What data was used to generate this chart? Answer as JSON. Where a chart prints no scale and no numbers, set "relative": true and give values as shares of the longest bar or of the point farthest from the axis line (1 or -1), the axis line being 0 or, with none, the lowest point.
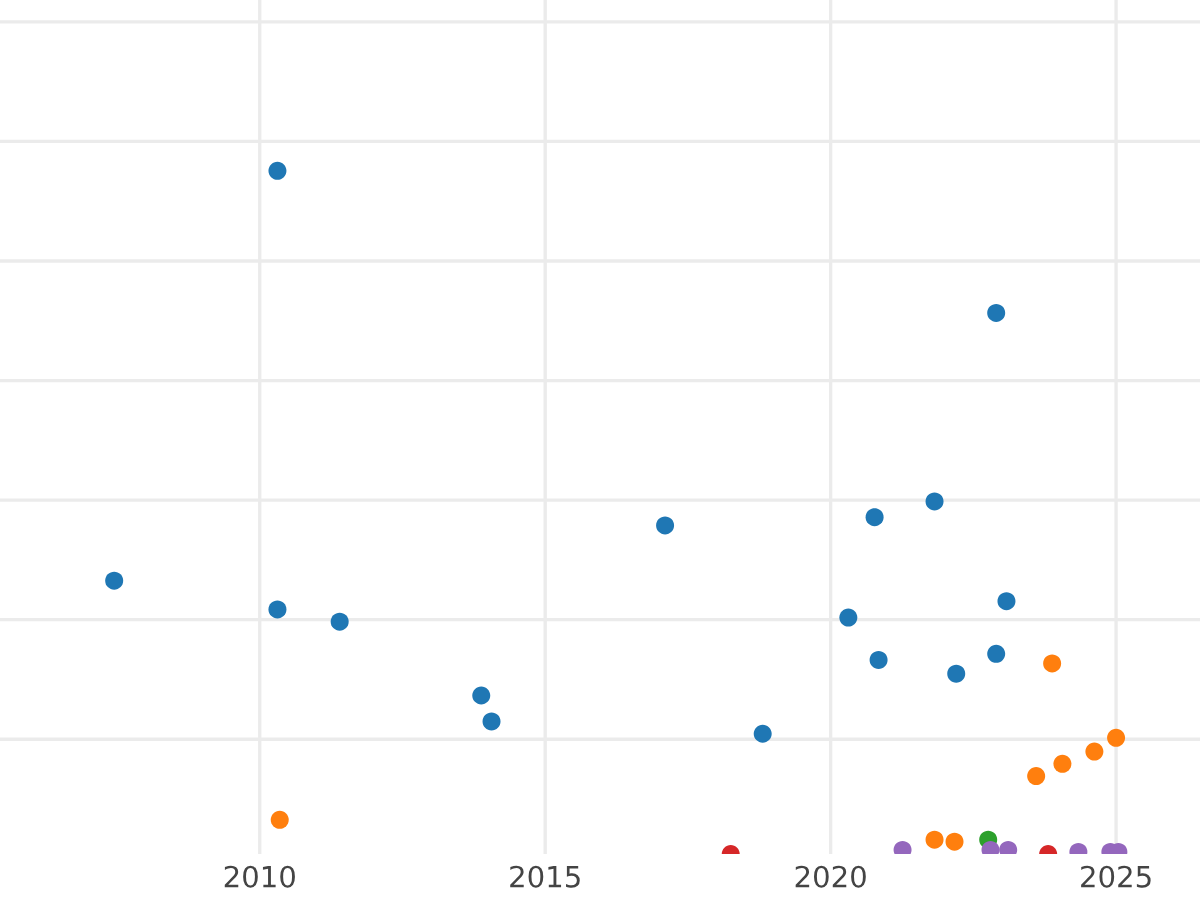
{
  "chart_data": {
    "type": "scatter",
    "relative": true,
    "grid": true,
    "tick_labels": "x",
    "marker": "circle",
    "xlim": [
      2005.45,
      2026.47
    ],
    "xticks": [
      2010,
      2015,
      2020,
      2025
    ],
    "series": [
      {
        "color": "#1f77b4",
        "x": [
          2007.45,
          2010.31,
          2010.31,
          2011.4,
          2013.88,
          2014.06,
          2017.1,
          2018.81,
          2020.31,
          2020.77,
          2020.84,
          2021.82,
          2022.2,
          2022.9,
          2022.9,
          2023.08
        ],
        "values": [
          0.4,
          1.0,
          0.358,
          0.34,
          0.232,
          0.194,
          0.481,
          0.176,
          0.346,
          0.493,
          0.284,
          0.516,
          0.264,
          0.792,
          0.293,
          0.37
        ]
      },
      {
        "color": "#ff7f0e",
        "x": [
          2010.35,
          2021.82,
          2022.17,
          2023.6,
          2023.88,
          2024.06,
          2024.62,
          2025.0
        ],
        "values": [
          0.05,
          0.021,
          0.018,
          0.114,
          0.279,
          0.132,
          0.15,
          0.17
        ]
      },
      {
        "color": "#2ca02c",
        "x": [
          2022.76
        ],
        "values": [
          0.021
        ]
      },
      {
        "color": "#d62728",
        "x": [
          2018.25,
          2023.81
        ],
        "values": [
          0,
          0
        ]
      },
      {
        "color": "#9467bd",
        "x": [
          2021.26,
          2022.8,
          2023.11,
          2024.34,
          2024.9,
          2025.04
        ],
        "values": [
          0.006,
          0.006,
          0.006,
          0.003,
          0.003,
          0.003
        ]
      }
    ]
  }
}
